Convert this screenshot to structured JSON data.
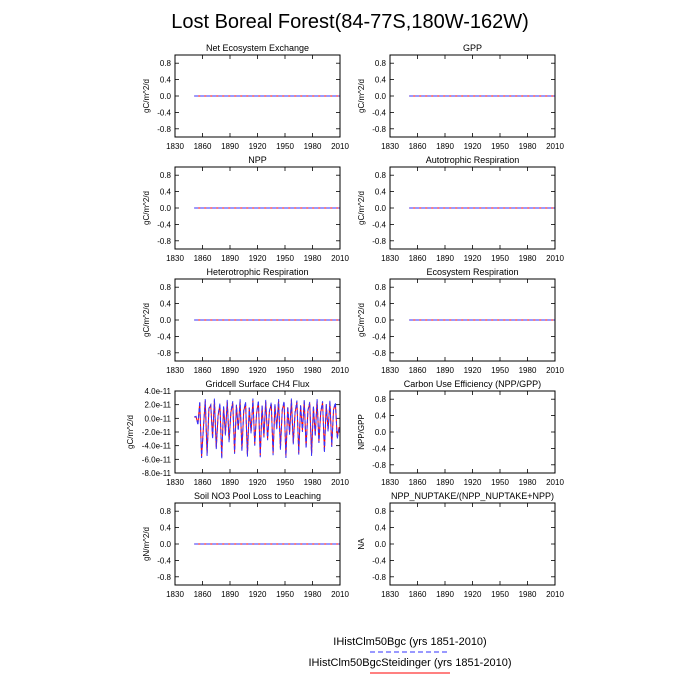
{
  "figure": {
    "title": "Lost Boreal Forest(84-77S,180W-162W)",
    "legend": [
      {
        "label": "IHistClm50Bgc (yrs 1851-2010)",
        "color": "#3333ff",
        "dash": true
      },
      {
        "label": "IHistClm50BgcSteidinger (yrs 1851-2010)",
        "color": "#ff0000",
        "dash": false
      }
    ]
  },
  "chart_data": [
    {
      "type": "line",
      "title": "Net Ecosystem Exchange",
      "ylabel": "gC/m^2/d",
      "xlim": [
        1830,
        2010
      ],
      "ylim": [
        -1.0,
        1.0
      ],
      "xticks": [
        "1830",
        "1860",
        "1890",
        "1920",
        "1950",
        "1980",
        "2010"
      ],
      "yticks": [
        "0.8",
        "0.4",
        "0.0",
        "-0.4",
        "-0.8"
      ],
      "ytick_values": [
        0.8,
        0.4,
        0.0,
        -0.4,
        -0.8
      ],
      "x": [
        1851,
        2010
      ],
      "series": [
        {
          "name": "IHistClm50Bgc (yrs 1851-2010)",
          "color": "#3333ff",
          "values": [
            0,
            0
          ]
        },
        {
          "name": "IHistClm50BgcSteidinger (yrs 1851-2010)",
          "color": "#ff0000",
          "values": [
            0,
            0
          ]
        }
      ]
    },
    {
      "type": "line",
      "title": "GPP",
      "ylabel": "gC/m^2/d",
      "xlim": [
        1830,
        2010
      ],
      "ylim": [
        -1.0,
        1.0
      ],
      "xticks": [
        "1830",
        "1860",
        "1890",
        "1920",
        "1950",
        "1980",
        "2010"
      ],
      "yticks": [
        "0.8",
        "0.4",
        "0.0",
        "-0.4",
        "-0.8"
      ],
      "ytick_values": [
        0.8,
        0.4,
        0.0,
        -0.4,
        -0.8
      ],
      "x": [
        1851,
        2010
      ],
      "series": [
        {
          "name": "IHistClm50Bgc (yrs 1851-2010)",
          "color": "#3333ff",
          "values": [
            0,
            0
          ]
        },
        {
          "name": "IHistClm50BgcSteidinger (yrs 1851-2010)",
          "color": "#ff0000",
          "values": [
            0,
            0
          ]
        }
      ]
    },
    {
      "type": "line",
      "title": "NPP",
      "ylabel": "gC/m^2/d",
      "xlim": [
        1830,
        2010
      ],
      "ylim": [
        -1.0,
        1.0
      ],
      "xticks": [
        "1830",
        "1860",
        "1890",
        "1920",
        "1950",
        "1980",
        "2010"
      ],
      "yticks": [
        "0.8",
        "0.4",
        "0.0",
        "-0.4",
        "-0.8"
      ],
      "ytick_values": [
        0.8,
        0.4,
        0.0,
        -0.4,
        -0.8
      ],
      "x": [
        1851,
        2010
      ],
      "series": [
        {
          "name": "IHistClm50Bgc (yrs 1851-2010)",
          "color": "#3333ff",
          "values": [
            0,
            0
          ]
        },
        {
          "name": "IHistClm50BgcSteidinger (yrs 1851-2010)",
          "color": "#ff0000",
          "values": [
            0,
            0
          ]
        }
      ]
    },
    {
      "type": "line",
      "title": "Autotrophic Respiration",
      "ylabel": "gC/m^2/d",
      "xlim": [
        1830,
        2010
      ],
      "ylim": [
        -1.0,
        1.0
      ],
      "xticks": [
        "1830",
        "1860",
        "1890",
        "1920",
        "1950",
        "1980",
        "2010"
      ],
      "yticks": [
        "0.8",
        "0.4",
        "0.0",
        "-0.4",
        "-0.8"
      ],
      "ytick_values": [
        0.8,
        0.4,
        0.0,
        -0.4,
        -0.8
      ],
      "x": [
        1851,
        2010
      ],
      "series": [
        {
          "name": "IHistClm50Bgc (yrs 1851-2010)",
          "color": "#3333ff",
          "values": [
            0,
            0
          ]
        },
        {
          "name": "IHistClm50BgcSteidinger (yrs 1851-2010)",
          "color": "#ff0000",
          "values": [
            0,
            0
          ]
        }
      ]
    },
    {
      "type": "line",
      "title": "Heterotrophic Respiration",
      "ylabel": "gC/m^2/d",
      "xlim": [
        1830,
        2010
      ],
      "ylim": [
        -1.0,
        1.0
      ],
      "xticks": [
        "1830",
        "1860",
        "1890",
        "1920",
        "1950",
        "1980",
        "2010"
      ],
      "yticks": [
        "0.8",
        "0.4",
        "0.0",
        "-0.4",
        "-0.8"
      ],
      "ytick_values": [
        0.8,
        0.4,
        0.0,
        -0.4,
        -0.8
      ],
      "x": [
        1851,
        2010
      ],
      "series": [
        {
          "name": "IHistClm50Bgc (yrs 1851-2010)",
          "color": "#3333ff",
          "values": [
            0,
            0
          ]
        },
        {
          "name": "IHistClm50BgcSteidinger (yrs 1851-2010)",
          "color": "#ff0000",
          "values": [
            0,
            0
          ]
        }
      ]
    },
    {
      "type": "line",
      "title": "Ecosystem Respiration",
      "ylabel": "gC/m^2/d",
      "xlim": [
        1830,
        2010
      ],
      "ylim": [
        -1.0,
        1.0
      ],
      "xticks": [
        "1830",
        "1860",
        "1890",
        "1920",
        "1950",
        "1980",
        "2010"
      ],
      "yticks": [
        "0.8",
        "0.4",
        "0.0",
        "-0.4",
        "-0.8"
      ],
      "ytick_values": [
        0.8,
        0.4,
        0.0,
        -0.4,
        -0.8
      ],
      "x": [
        1851,
        2010
      ],
      "series": [
        {
          "name": "IHistClm50Bgc (yrs 1851-2010)",
          "color": "#3333ff",
          "values": [
            0,
            0
          ]
        },
        {
          "name": "IHistClm50BgcSteidinger (yrs 1851-2010)",
          "color": "#ff0000",
          "values": [
            0,
            0
          ]
        }
      ]
    },
    {
      "type": "line",
      "title": "Gridcell Surface CH4 Flux",
      "ylabel": "gC/m^2/d",
      "xlim": [
        1830,
        2010
      ],
      "ylim": [
        -8e-11,
        4e-11
      ],
      "xticks": [
        "1830",
        "1860",
        "1890",
        "1920",
        "1950",
        "1980",
        "2010"
      ],
      "yticks": [
        "4.0e-11",
        "2.0e-11",
        "0.0e-11",
        "-2.0e-11",
        "-4.0e-11",
        "-6.0e-11",
        "-8.0e-11"
      ],
      "ytick_values": [
        4e-11,
        2e-11,
        0,
        -2e-11,
        -4e-11,
        -6e-11,
        -8e-11
      ],
      "x": [
        1851,
        1853,
        1855,
        1857,
        1859,
        1861,
        1863,
        1865,
        1867,
        1869,
        1871,
        1873,
        1875,
        1877,
        1879,
        1881,
        1883,
        1885,
        1887,
        1889,
        1891,
        1893,
        1895,
        1897,
        1899,
        1901,
        1903,
        1905,
        1907,
        1909,
        1911,
        1913,
        1915,
        1917,
        1919,
        1921,
        1923,
        1925,
        1927,
        1929,
        1931,
        1933,
        1935,
        1937,
        1939,
        1941,
        1943,
        1945,
        1947,
        1949,
        1951,
        1953,
        1955,
        1957,
        1959,
        1961,
        1963,
        1965,
        1967,
        1969,
        1971,
        1973,
        1975,
        1977,
        1979,
        1981,
        1983,
        1985,
        1987,
        1989,
        1991,
        1993,
        1995,
        1997,
        1999,
        2001,
        2003,
        2005,
        2007,
        2009,
        2010
      ],
      "series": [
        {
          "name": "IHistClm50Bgc (yrs 1851-2010)",
          "color": "#3333ff",
          "values": [
            2e-12,
            3e-12,
            -1e-11,
            2.5e-11,
            -5.8e-11,
            -1.5e-11,
            2.8e-11,
            -5.5e-11,
            1.5e-11,
            2e-11,
            -3e-11,
            2.9e-11,
            -4.5e-11,
            5e-12,
            2.2e-11,
            -5.9e-11,
            1.8e-11,
            -2.5e-11,
            2.7e-11,
            -3.5e-11,
            1e-11,
            2.5e-11,
            -5.2e-11,
            2e-11,
            -1.8e-11,
            2.8e-11,
            -4.8e-11,
            1.2e-11,
            2.4e-11,
            -5.6e-11,
            1.6e-11,
            -2.2e-11,
            2.9e-11,
            -4e-11,
            8e-12,
            2.6e-11,
            -5.7e-11,
            1.9e-11,
            -2.8e-11,
            2.7e-11,
            -3.2e-11,
            1.1e-11,
            2.3e-11,
            -5.4e-11,
            2.1e-11,
            -1.6e-11,
            2.8e-11,
            -4.6e-11,
            1.3e-11,
            2.5e-11,
            -5.8e-11,
            1.7e-11,
            -2.4e-11,
            2.9e-11,
            -3.8e-11,
            9e-12,
            2.6e-11,
            -5.3e-11,
            2e-11,
            -2e-11,
            2.7e-11,
            -4.4e-11,
            1.2e-11,
            2.4e-11,
            -5.5e-11,
            1.8e-11,
            -2.6e-11,
            2.8e-11,
            -3.6e-11,
            1e-11,
            2.5e-11,
            -5e-11,
            2.1e-11,
            -1.9e-11,
            2.6e-11,
            -4.2e-11,
            1.4e-11,
            2.3e-11,
            -3e-11,
            -1.5e-11,
            -2e-11
          ]
        },
        {
          "name": "IHistClm50BgcSteidinger (yrs 1851-2010)",
          "color": "#ff0000",
          "values": [
            2e-12,
            2e-12,
            -8e-12,
            2.3e-11,
            -5.6e-11,
            -1.3e-11,
            2.6e-11,
            -5.3e-11,
            1.4e-11,
            1.9e-11,
            -2.8e-11,
            2.7e-11,
            -4.3e-11,
            4e-12,
            2e-11,
            -5.7e-11,
            1.7e-11,
            -2.3e-11,
            2.5e-11,
            -3.3e-11,
            9e-12,
            2.3e-11,
            -5e-11,
            1.9e-11,
            -1.6e-11,
            2.6e-11,
            -4.6e-11,
            1.1e-11,
            2.2e-11,
            -5.4e-11,
            1.5e-11,
            -2e-11,
            2.7e-11,
            -3.8e-11,
            7e-12,
            2.4e-11,
            -5.5e-11,
            1.8e-11,
            -2.6e-11,
            2.5e-11,
            -3e-11,
            1e-11,
            2.1e-11,
            -5.2e-11,
            2e-11,
            -1.4e-11,
            2.6e-11,
            -4.4e-11,
            1.2e-11,
            2.3e-11,
            -5.6e-11,
            1.6e-11,
            -2.2e-11,
            2.7e-11,
            -3.6e-11,
            8e-12,
            2.4e-11,
            -5.1e-11,
            1.9e-11,
            -1.8e-11,
            2.5e-11,
            -4.2e-11,
            1.1e-11,
            2.2e-11,
            -5.3e-11,
            1.7e-11,
            -2.4e-11,
            2.6e-11,
            -3.4e-11,
            9e-12,
            2.3e-11,
            -4.8e-11,
            2e-11,
            -1.7e-11,
            2.4e-11,
            -4e-11,
            1.3e-11,
            2.1e-11,
            -2.8e-11,
            -1.3e-11,
            -1.8e-11
          ]
        }
      ]
    },
    {
      "type": "line",
      "title": "Carbon Use Efficiency (NPP/GPP)",
      "ylabel": "NPP/GPP",
      "xlim": [
        1830,
        2010
      ],
      "ylim": [
        -1.0,
        1.0
      ],
      "xticks": [
        "1830",
        "1860",
        "1890",
        "1920",
        "1950",
        "1980",
        "2010"
      ],
      "yticks": [
        "0.8",
        "0.4",
        "0.0",
        "-0.4",
        "-0.8"
      ],
      "ytick_values": [
        0.8,
        0.4,
        0.0,
        -0.4,
        -0.8
      ],
      "x": [],
      "series": []
    },
    {
      "type": "line",
      "title": "Soil NO3 Pool Loss to Leaching",
      "ylabel": "gN/m^2/d",
      "xlim": [
        1830,
        2010
      ],
      "ylim": [
        -1.0,
        1.0
      ],
      "xticks": [
        "1830",
        "1860",
        "1890",
        "1920",
        "1950",
        "1980",
        "2010"
      ],
      "yticks": [
        "0.8",
        "0.4",
        "0.0",
        "-0.4",
        "-0.8"
      ],
      "ytick_values": [
        0.8,
        0.4,
        0.0,
        -0.4,
        -0.8
      ],
      "x": [
        1851,
        2010
      ],
      "series": [
        {
          "name": "IHistClm50Bgc (yrs 1851-2010)",
          "color": "#3333ff",
          "values": [
            0,
            0
          ]
        },
        {
          "name": "IHistClm50BgcSteidinger (yrs 1851-2010)",
          "color": "#ff0000",
          "values": [
            0,
            0
          ]
        }
      ]
    },
    {
      "type": "line",
      "title": "NPP_NUPTAKE/(NPP_NUPTAKE+NPP)",
      "ylabel": "NA",
      "xlim": [
        1830,
        2010
      ],
      "ylim": [
        -1.0,
        1.0
      ],
      "xticks": [
        "1830",
        "1860",
        "1890",
        "1920",
        "1950",
        "1980",
        "2010"
      ],
      "yticks": [
        "0.8",
        "0.4",
        "0.0",
        "-0.4",
        "-0.8"
      ],
      "ytick_values": [
        0.8,
        0.4,
        0.0,
        -0.4,
        -0.8
      ],
      "x": [],
      "series": []
    }
  ]
}
